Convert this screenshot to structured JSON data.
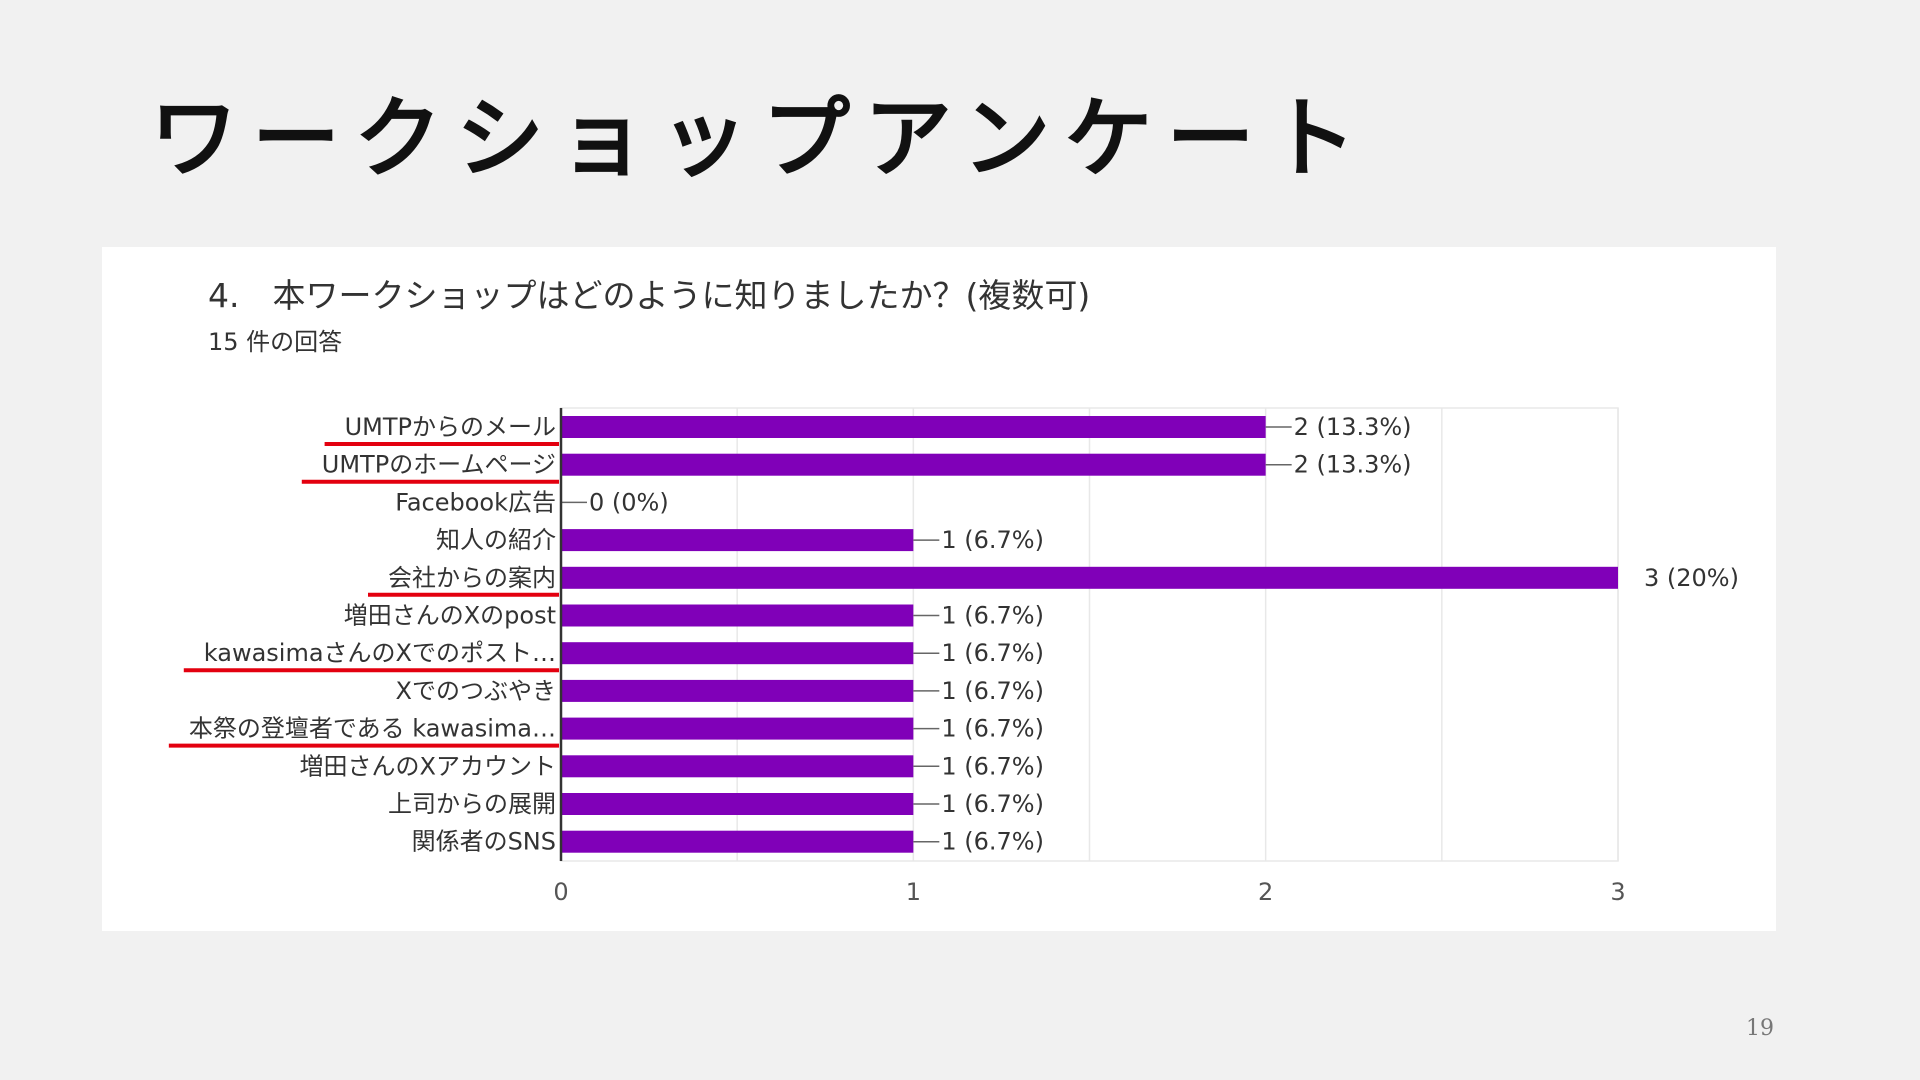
{
  "slide": {
    "title": "ワークショップアンケート",
    "page_number": "19"
  },
  "question": {
    "text": "4.　本ワークショップはどのように知りましたか？(複数可)",
    "responses": "15 件の回答"
  },
  "colors": {
    "bar": "#8000b8",
    "underline": "#e3000f",
    "grid": "#e8e8e8",
    "axis": "#333333",
    "text": "#333333"
  },
  "chart_data": {
    "type": "bar",
    "orientation": "horizontal",
    "categories": [
      "UMTPからのメール",
      "UMTPのホームページ",
      "Facebook広告",
      "知人の紹介",
      "会社からの案内",
      "増田さんのXのpost",
      "kawasimaさんのXでのポスト…",
      "Xでのつぶやき",
      "本祭の登壇者である kawasima…",
      "増田さんのXアカウント",
      "上司からの展開",
      "関係者のSNS"
    ],
    "values": [
      2,
      2,
      0,
      1,
      3,
      1,
      1,
      1,
      1,
      1,
      1,
      1
    ],
    "data_labels": [
      "2 (13.3%)",
      "2 (13.3%)",
      "0 (0%)",
      "1 (6.7%)",
      "3 (20%)",
      "1 (6.7%)",
      "1 (6.7%)",
      "1 (6.7%)",
      "1 (6.7%)",
      "1 (6.7%)",
      "1 (6.7%)",
      "1 (6.7%)"
    ],
    "underlined": [
      true,
      true,
      false,
      false,
      true,
      false,
      true,
      false,
      true,
      false,
      false,
      false
    ],
    "xlim": [
      0,
      3
    ],
    "xticks": [
      "0",
      "1",
      "2",
      "3"
    ],
    "grid": true,
    "title": "",
    "xlabel": "",
    "ylabel": ""
  }
}
